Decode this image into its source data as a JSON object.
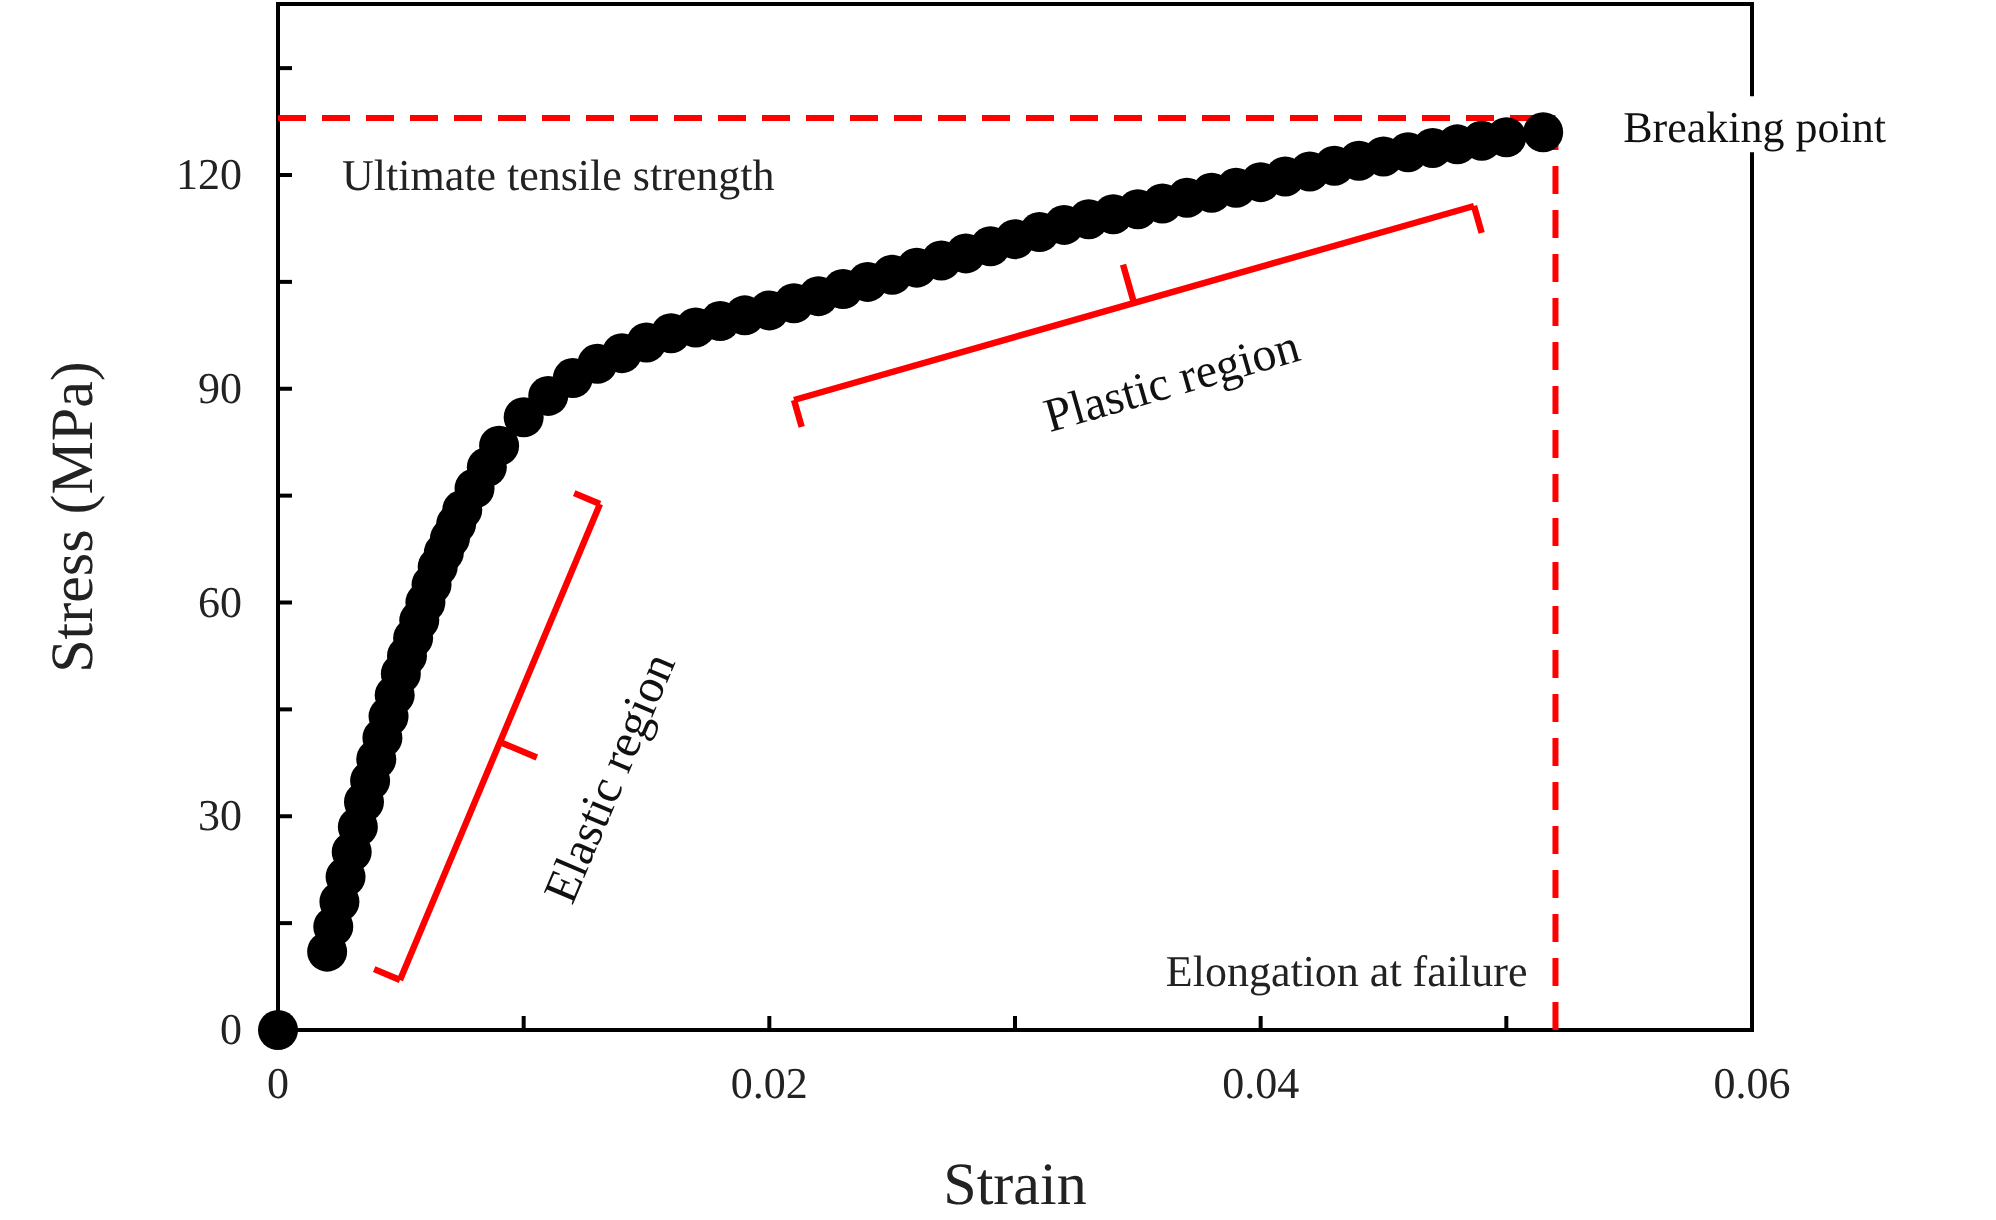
{
  "chart_data": {
    "type": "scatter",
    "xlabel": "Strain",
    "ylabel": "Stress (MPa)",
    "xlim": [
      0,
      0.06
    ],
    "ylim": [
      0,
      144
    ],
    "xticks": [
      0,
      {
        "value": 0.01,
        "label": null
      },
      0.02,
      {
        "value": 0.03,
        "label": null
      },
      0.04,
      {
        "value": 0.05,
        "label": null
      },
      0.06
    ],
    "yticks": [
      0,
      {
        "value": 15,
        "label": null
      },
      30,
      {
        "value": 45,
        "label": null
      },
      60,
      {
        "value": 75,
        "label": null
      },
      90,
      {
        "value": 105,
        "label": null
      },
      120,
      {
        "value": 135,
        "label": null
      }
    ],
    "marker": "circle",
    "grid": false,
    "series": [
      {
        "color": "#000000",
        "x": [
          0,
          0.002,
          0.00225,
          0.0025,
          0.00275,
          0.003,
          0.00325,
          0.0035,
          0.00375,
          0.004,
          0.00425,
          0.0045,
          0.00475,
          0.005,
          0.00525,
          0.0055,
          0.00575,
          0.006,
          0.00625,
          0.0065,
          0.00675,
          0.007,
          0.00725,
          0.0075,
          0.008,
          0.0085,
          0.009,
          0.01,
          0.011,
          0.012,
          0.013,
          0.014,
          0.015,
          0.016,
          0.017,
          0.018,
          0.019,
          0.02,
          0.021,
          0.022,
          0.023,
          0.024,
          0.025,
          0.026,
          0.027,
          0.028,
          0.029,
          0.03,
          0.031,
          0.032,
          0.033,
          0.034,
          0.035,
          0.036,
          0.037,
          0.038,
          0.039,
          0.04,
          0.041,
          0.042,
          0.043,
          0.044,
          0.045,
          0.046,
          0.047,
          0.048,
          0.049,
          0.05,
          0.0515
        ],
        "values": [
          0,
          11,
          14.5,
          18,
          21.5,
          25,
          28.5,
          32,
          35,
          38,
          41,
          44,
          47,
          50,
          52.5,
          55,
          57.5,
          60,
          62.5,
          65,
          67,
          69,
          71,
          73,
          76,
          79,
          82,
          86,
          89,
          91.5,
          93.5,
          95,
          96.5,
          97.8,
          98.6,
          99.5,
          100.3,
          101,
          102,
          103,
          104,
          105,
          106,
          107,
          108,
          109,
          110,
          111,
          112,
          113,
          113.8,
          114.5,
          115.2,
          116,
          116.8,
          117.5,
          118.2,
          119,
          119.8,
          120.5,
          121.3,
          122,
          122.6,
          123.2,
          123.8,
          124.3,
          124.8,
          125.3,
          126
        ]
      }
    ],
    "ref_lines": [
      {
        "axis": "y",
        "value": 128,
        "label": "Ultimate tensile strength",
        "color": "#ff0000",
        "line_style": "dashed"
      },
      {
        "axis": "x",
        "value": 0.052,
        "label": "Elongation at failure",
        "color": "#ff0000",
        "line_style": "dashed"
      }
    ],
    "annotations": [
      {
        "text": "Breaking point",
        "x": 0.0515,
        "y": 126
      },
      "Elastic region",
      "Plastic region"
    ]
  }
}
